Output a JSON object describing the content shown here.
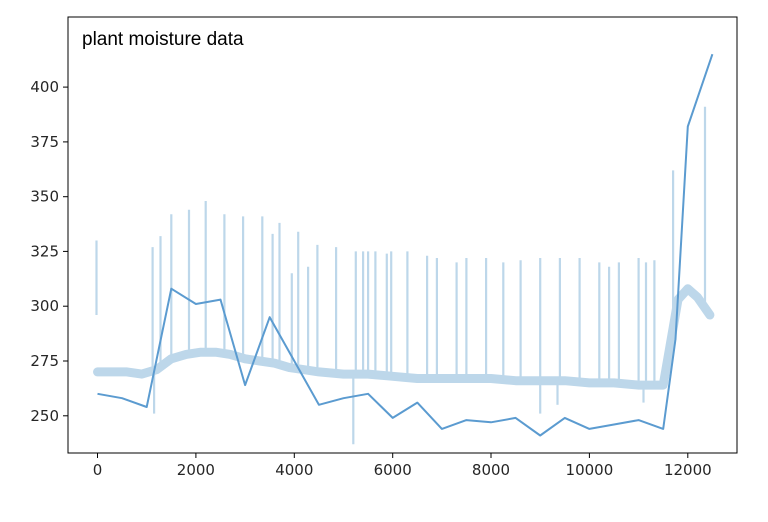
{
  "chart_data": {
    "type": "line",
    "title": "plant moisture data",
    "xlabel": "",
    "ylabel": "",
    "xlim": [
      -600,
      13000
    ],
    "ylim": [
      233,
      432
    ],
    "xticks": [
      0,
      2000,
      4000,
      6000,
      8000,
      10000,
      12000
    ],
    "yticks": [
      250,
      275,
      300,
      325,
      350,
      375,
      400
    ],
    "xtick_labels": [
      "0",
      "2000",
      "4000",
      "6000",
      "8000",
      "10000",
      "12000"
    ],
    "ytick_labels": [
      "250",
      "275",
      "300",
      "325",
      "350",
      "375",
      "400"
    ],
    "grid": false,
    "series": [
      {
        "color": "#bdd7ea",
        "style": "dense raw readings",
        "baseline": [
          [
            0,
            270
          ],
          [
            300,
            270
          ],
          [
            600,
            270
          ],
          [
            900,
            269
          ],
          [
            1200,
            271
          ],
          [
            1500,
            276
          ],
          [
            1800,
            278
          ],
          [
            2100,
            279
          ],
          [
            2400,
            279
          ],
          [
            2700,
            278
          ],
          [
            3000,
            276
          ],
          [
            3300,
            275
          ],
          [
            3600,
            274
          ],
          [
            3900,
            272
          ],
          [
            4200,
            271
          ],
          [
            4500,
            270
          ],
          [
            5000,
            269
          ],
          [
            5500,
            269
          ],
          [
            6000,
            268
          ],
          [
            6500,
            267
          ],
          [
            7000,
            267
          ],
          [
            7500,
            267
          ],
          [
            8000,
            267
          ],
          [
            8500,
            266
          ],
          [
            9000,
            266
          ],
          [
            9500,
            266
          ],
          [
            10000,
            265
          ],
          [
            10500,
            265
          ],
          [
            11000,
            264
          ],
          [
            11500,
            264
          ],
          [
            11700,
            290
          ],
          [
            11800,
            303
          ],
          [
            12000,
            308
          ],
          [
            12200,
            304
          ],
          [
            12450,
            296
          ]
        ],
        "spikes": [
          [
            -20,
            330
          ],
          [
            1120,
            327
          ],
          [
            1280,
            332
          ],
          [
            1500,
            342
          ],
          [
            1860,
            344
          ],
          [
            2200,
            348
          ],
          [
            2580,
            342
          ],
          [
            2960,
            341
          ],
          [
            3350,
            341
          ],
          [
            3560,
            333
          ],
          [
            3700,
            338
          ],
          [
            3950,
            315
          ],
          [
            4080,
            334
          ],
          [
            4280,
            318
          ],
          [
            4470,
            328
          ],
          [
            4850,
            327
          ],
          [
            5250,
            325
          ],
          [
            5400,
            325
          ],
          [
            5500,
            325
          ],
          [
            5650,
            325
          ],
          [
            5880,
            324
          ],
          [
            5970,
            325
          ],
          [
            6300,
            325
          ],
          [
            6700,
            323
          ],
          [
            6900,
            322
          ],
          [
            7300,
            320
          ],
          [
            7500,
            322
          ],
          [
            7900,
            322
          ],
          [
            8250,
            320
          ],
          [
            8600,
            321
          ],
          [
            9000,
            322
          ],
          [
            9400,
            322
          ],
          [
            9800,
            322
          ],
          [
            10200,
            320
          ],
          [
            10400,
            318
          ],
          [
            10600,
            320
          ],
          [
            11000,
            322
          ],
          [
            11150,
            320
          ],
          [
            11320,
            321
          ],
          [
            11700,
            362
          ],
          [
            12350,
            391
          ]
        ],
        "dips": [
          [
            1150,
            251
          ],
          [
            5200,
            237
          ],
          [
            9000,
            251
          ],
          [
            9350,
            255
          ],
          [
            11100,
            256
          ]
        ]
      },
      {
        "color": "#5b9bd0",
        "style": "averaged line",
        "x": [
          0,
          500,
          1000,
          1500,
          2000,
          2500,
          3000,
          3500,
          4000,
          4500,
          5000,
          5500,
          6000,
          6500,
          7000,
          7500,
          8000,
          8500,
          9000,
          9500,
          10000,
          10500,
          11000,
          11500,
          11750,
          12000,
          12500
        ],
        "y": [
          260,
          258,
          254,
          308,
          301,
          303,
          264,
          295,
          275,
          255,
          258,
          260,
          249,
          256,
          244,
          248,
          247,
          249,
          241,
          249,
          244,
          246,
          248,
          244,
          285,
          382,
          415
        ]
      }
    ]
  }
}
